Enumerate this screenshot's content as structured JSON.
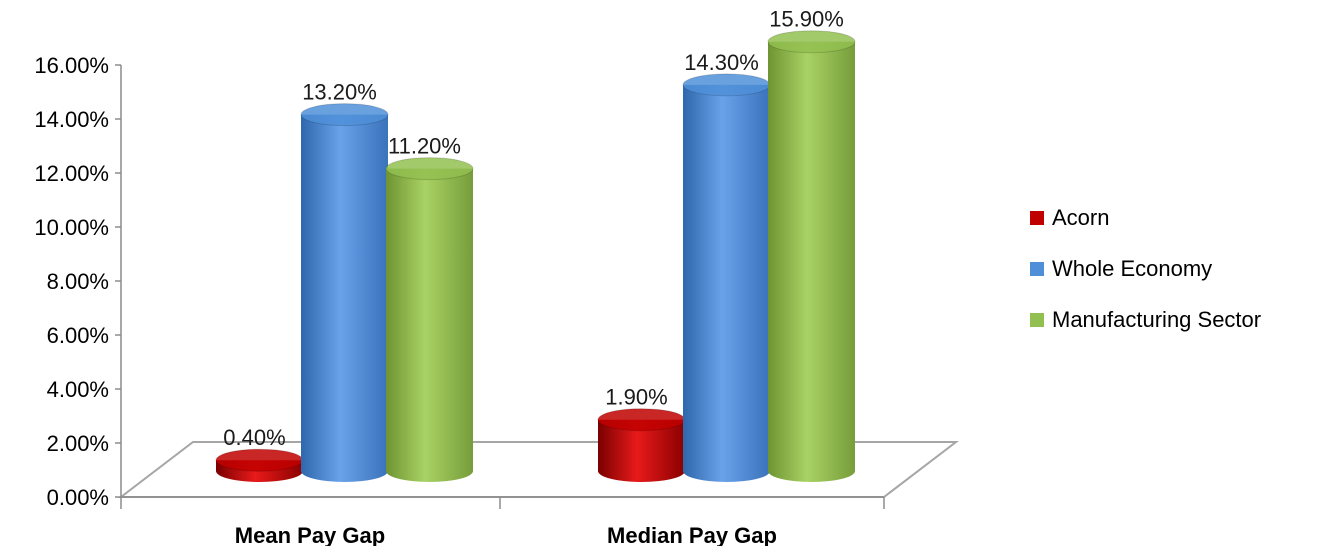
{
  "chart_data": {
    "type": "bar",
    "categories": [
      "Mean Pay Gap",
      "Median Pay Gap"
    ],
    "series": [
      {
        "name": "Acorn",
        "values": [
          0.4,
          1.9
        ],
        "labels": [
          "0.40%",
          "1.90%"
        ],
        "color": "#c00000"
      },
      {
        "name": "Whole Economy",
        "values": [
          13.2,
          14.3
        ],
        "labels": [
          "13.20%",
          "14.30%"
        ],
        "color": "#4f8fd8"
      },
      {
        "name": "Manufacturing Sector",
        "values": [
          11.2,
          15.9
        ],
        "labels": [
          "11.20%",
          "15.90%"
        ],
        "color": "#92c050"
      }
    ],
    "y_ticks": [
      "0.00%",
      "2.00%",
      "4.00%",
      "6.00%",
      "8.00%",
      "10.00%",
      "12.00%",
      "14.00%",
      "16.00%"
    ],
    "ylim": [
      0,
      16
    ],
    "grid": false,
    "legend_position": "right",
    "style": "3d-cylinder"
  }
}
